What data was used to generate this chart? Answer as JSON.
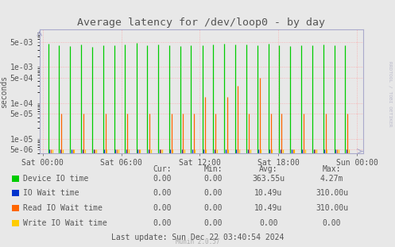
{
  "title": "Average latency for /dev/loop0 - by day",
  "ylabel": "seconds",
  "background_color": "#e8e8e8",
  "grid_color": "#ff9999",
  "axis_color": "#aaaacc",
  "yticks": [
    5e-06,
    1e-05,
    5e-05,
    0.0001,
    0.0005,
    0.001,
    0.005
  ],
  "ytick_labels": [
    "5e-06",
    "1e-05",
    "5e-05",
    "1e-04",
    "5e-04",
    "1e-03",
    "5e-03"
  ],
  "xtick_labels": [
    "Sat 00:00",
    "Sat 06:00",
    "Sat 12:00",
    "Sat 18:00",
    "Sun 00:00"
  ],
  "xtick_positions": [
    0.0,
    0.25,
    0.5,
    0.75,
    1.0
  ],
  "series": [
    {
      "name": "Device IO time",
      "color": "#00cc00",
      "line_positions": [
        0.018,
        0.052,
        0.088,
        0.122,
        0.158,
        0.192,
        0.228,
        0.262,
        0.298,
        0.332,
        0.368,
        0.402,
        0.438,
        0.472,
        0.508,
        0.542,
        0.578,
        0.612,
        0.648,
        0.682,
        0.718,
        0.752,
        0.788,
        0.822,
        0.858,
        0.892,
        0.928,
        0.962
      ],
      "heights": [
        0.0045,
        0.004,
        0.0038,
        0.0042,
        0.0037,
        0.004,
        0.0041,
        0.0043,
        0.0048,
        0.0041,
        0.0042,
        0.004,
        0.0039,
        0.0041,
        0.004,
        0.0042,
        0.0045,
        0.0043,
        0.0042,
        0.004,
        0.0045,
        0.004,
        0.0039,
        0.0041,
        0.004,
        0.0042,
        0.004,
        0.0041
      ]
    },
    {
      "name": "IO Wait time",
      "color": "#0033cc",
      "line_positions": [
        0.022,
        0.056,
        0.092,
        0.126,
        0.162,
        0.196,
        0.232,
        0.266,
        0.302,
        0.336,
        0.372,
        0.406,
        0.442,
        0.476,
        0.512,
        0.546,
        0.582,
        0.616,
        0.652,
        0.686,
        0.722,
        0.756,
        0.792,
        0.826,
        0.862,
        0.896,
        0.932,
        0.966
      ],
      "heights": [
        5e-06,
        5e-06,
        5e-06,
        5e-06,
        5e-06,
        5e-06,
        5e-06,
        5e-06,
        5e-06,
        5e-06,
        5e-06,
        5e-06,
        5e-06,
        5e-06,
        5e-06,
        5e-06,
        5e-06,
        5e-06,
        5e-06,
        5e-06,
        5e-06,
        5e-06,
        5e-06,
        5e-06,
        5e-06,
        5e-06,
        5e-06,
        5e-06
      ]
    },
    {
      "name": "Read IO Wait time",
      "color": "#ff6600",
      "line_positions": [
        0.026,
        0.06,
        0.096,
        0.13,
        0.166,
        0.2,
        0.236,
        0.27,
        0.306,
        0.34,
        0.376,
        0.41,
        0.446,
        0.48,
        0.516,
        0.55,
        0.586,
        0.62,
        0.656,
        0.69,
        0.726,
        0.76,
        0.796,
        0.83,
        0.866,
        0.9,
        0.936,
        0.97
      ],
      "heights": [
        5e-06,
        5e-05,
        5e-06,
        5e-05,
        5e-06,
        5e-05,
        5e-06,
        5e-05,
        5e-06,
        5e-05,
        5e-06,
        5e-05,
        5e-05,
        5e-05,
        0.00015,
        5e-05,
        0.00015,
        0.0003,
        5e-05,
        0.0005,
        5e-05,
        5e-05,
        5e-06,
        5e-05,
        5e-06,
        5e-05,
        5e-06,
        5e-05
      ]
    },
    {
      "name": "Write IO Wait time",
      "color": "#ffcc00",
      "line_positions": [
        0.03,
        0.064,
        0.1,
        0.134,
        0.17,
        0.204,
        0.24,
        0.274,
        0.31,
        0.344,
        0.38,
        0.414,
        0.45,
        0.484,
        0.52,
        0.554,
        0.59,
        0.624,
        0.66,
        0.694,
        0.73,
        0.764,
        0.8,
        0.834,
        0.87,
        0.904,
        0.94,
        0.974
      ],
      "heights": [
        5e-06,
        5e-06,
        5e-06,
        5e-06,
        5e-06,
        5e-06,
        5e-06,
        5e-06,
        5e-06,
        5e-06,
        5e-06,
        5e-06,
        5e-06,
        5e-06,
        5e-06,
        5e-06,
        5e-06,
        5e-06,
        5e-06,
        5e-06,
        5e-06,
        5e-06,
        5e-06,
        5e-06,
        5e-06,
        5e-06,
        5e-06,
        5e-06
      ]
    }
  ],
  "legend_entries": [
    {
      "label": "Device IO time",
      "color": "#00cc00"
    },
    {
      "label": "IO Wait time",
      "color": "#0033cc"
    },
    {
      "label": "Read IO Wait time",
      "color": "#ff6600"
    },
    {
      "label": "Write IO Wait time",
      "color": "#ffcc00"
    }
  ],
  "legend_stats": {
    "headers": [
      "Cur:",
      "Min:",
      "Avg:",
      "Max:"
    ],
    "rows": [
      [
        "0.00",
        "0.00",
        "363.55u",
        "4.27m"
      ],
      [
        "0.00",
        "0.00",
        "10.49u",
        "310.00u"
      ],
      [
        "0.00",
        "0.00",
        "10.49u",
        "310.00u"
      ],
      [
        "0.00",
        "0.00",
        "0.00",
        "0.00"
      ]
    ]
  },
  "last_update": "Last update: Sun Dec 22 03:40:54 2024",
  "munin_version": "Munin 2.0.57",
  "rrdtool_label": "RRDTOOL / TOBI OETIKER",
  "font_color": "#555555",
  "font_size": 7.0,
  "title_fontsize": 9.5
}
